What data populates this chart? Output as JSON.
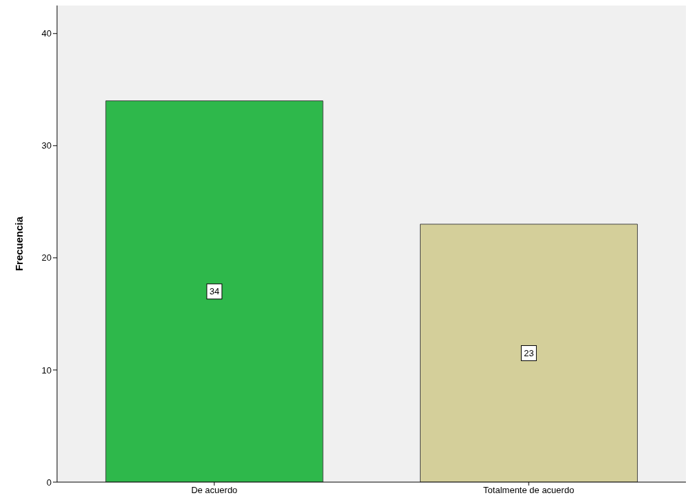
{
  "chart_data": {
    "type": "bar",
    "ylabel": "Frecuencia",
    "categories": [
      "De acuerdo",
      "Totalmente de acuerdo"
    ],
    "values": [
      34,
      23
    ],
    "colors": [
      "#2eb84b",
      "#d4cf9a"
    ],
    "ylim": [
      0,
      42.5
    ],
    "yticks": [
      0,
      10,
      20,
      30,
      40
    ],
    "data_labels": true
  }
}
